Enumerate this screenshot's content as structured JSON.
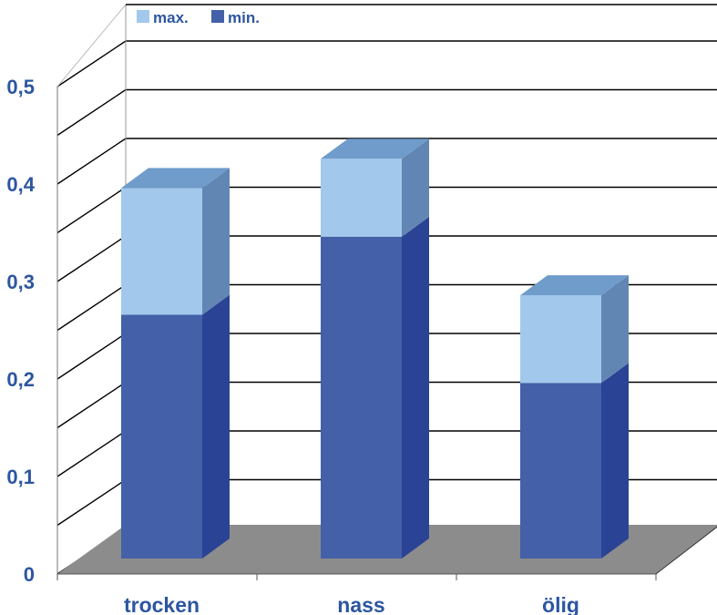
{
  "chart_data": {
    "type": "bar",
    "stacked": true,
    "three_d": true,
    "title": "",
    "xlabel": "",
    "ylabel": "",
    "categories": [
      "trocken",
      "nass",
      "ölig"
    ],
    "series": [
      {
        "name": "min.",
        "values": [
          0.25,
          0.33,
          0.18
        ],
        "color": "#4460A8"
      },
      {
        "name": "max.",
        "values": [
          0.13,
          0.08,
          0.09
        ],
        "color": "#A2C8EC"
      }
    ],
    "ylim": [
      0,
      0.5
    ],
    "yticks": [
      "0",
      "0,1",
      "0,2",
      "0,3",
      "0,4",
      "0,5"
    ],
    "grid": true,
    "legend_position": "top-left",
    "legend_order": [
      "max.",
      "min."
    ],
    "colors": {
      "text": "#2C56A0",
      "floor": "#8C8C8C",
      "min_side": "#2B4394",
      "max_side": "#6286B4",
      "max_top": "#6F9CCB"
    }
  }
}
